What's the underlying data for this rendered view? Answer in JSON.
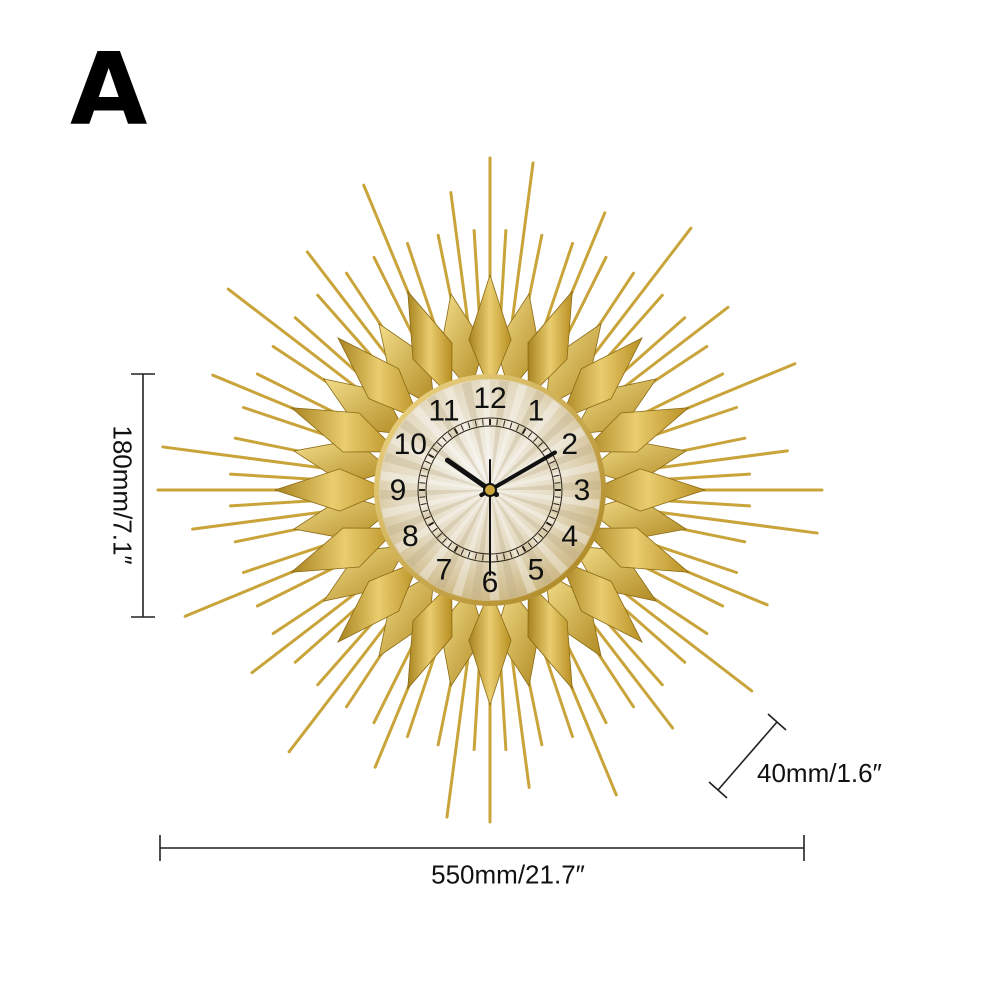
{
  "variant_label": "A",
  "dimensions": {
    "height": "180mm/7.1″",
    "depth": "40mm/1.6″",
    "width": "550mm/21.7″"
  },
  "clock": {
    "numerals": [
      "12",
      "1",
      "2",
      "3",
      "4",
      "5",
      "6",
      "7",
      "8",
      "9",
      "10",
      "11"
    ],
    "time_shown": "10:10:30",
    "colors": {
      "gold": "#c9a43a",
      "gold_light": "#ecd27a",
      "gold_dark": "#9c7a1e",
      "face": "#e6ddc8",
      "hands": "#111111"
    }
  }
}
